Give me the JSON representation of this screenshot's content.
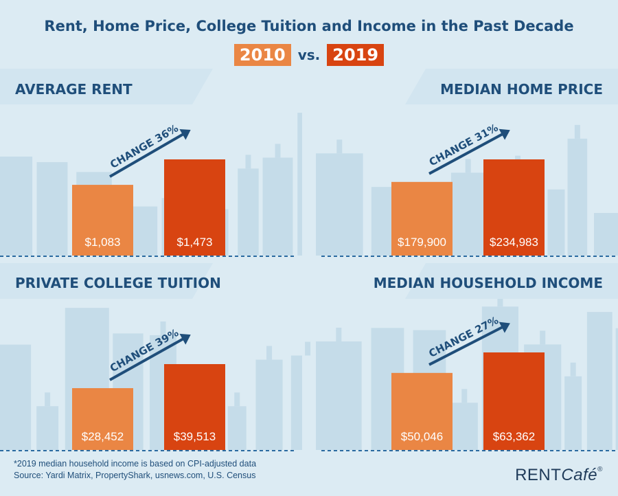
{
  "title": "Rent, Home Price, College Tuition and Income in the Past Decade",
  "legend": {
    "year_a": "2010",
    "vs": "vs.",
    "year_b": "2019"
  },
  "colors": {
    "year_a": "#ea8644",
    "year_b": "#d84411",
    "arrow": "#1f4e7a",
    "text": "#1f4e7a"
  },
  "chart_data": [
    {
      "type": "bar",
      "title": "AVERAGE RENT",
      "categories": [
        "2010",
        "2019"
      ],
      "values": [
        1083,
        1473
      ],
      "labels": [
        "$1,083",
        "$1,473"
      ],
      "annotation": "CHANGE 36%"
    },
    {
      "type": "bar",
      "title": "MEDIAN HOME PRICE",
      "categories": [
        "2010",
        "2019"
      ],
      "values": [
        179900,
        234983
      ],
      "labels": [
        "$179,900",
        "$234,983"
      ],
      "annotation": "CHANGE 31%"
    },
    {
      "type": "bar",
      "title": "PRIVATE COLLEGE TUITION",
      "categories": [
        "2010",
        "2019"
      ],
      "values": [
        28452,
        39513
      ],
      "labels": [
        "$28,452",
        "$39,513"
      ],
      "annotation": "CHANGE 39%"
    },
    {
      "type": "bar",
      "title": "MEDIAN HOUSEHOLD INCOME",
      "categories": [
        "2010",
        "2019"
      ],
      "values": [
        50046,
        63362
      ],
      "labels": [
        "$50,046",
        "$63,362"
      ],
      "annotation": "CHANGE 27%"
    }
  ],
  "footnote": {
    "line1": "*2019 median household income is based on CPI-adjusted data",
    "line2": "Source: Yardi Matrix, PropertyShark, usnews.com, U.S. Census"
  },
  "logo": {
    "main": "RENT",
    "accent": "Café",
    "mark": "®"
  }
}
